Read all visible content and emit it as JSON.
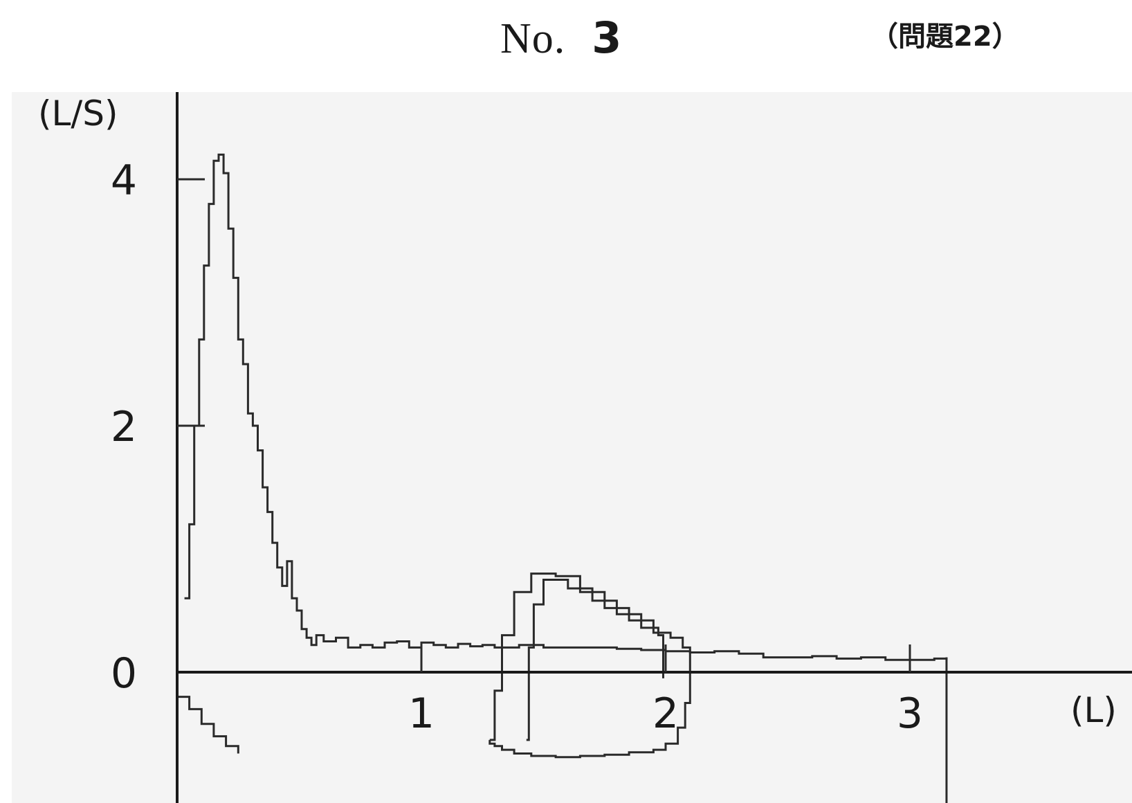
{
  "header": {
    "title": "No.",
    "number": "3",
    "reference": "（問題22）"
  },
  "chart_data": {
    "type": "line",
    "title": "",
    "xlabel": "(L)",
    "ylabel": "(L/S)",
    "xlim": [
      0,
      3.5
    ],
    "ylim": [
      -0.7,
      4.6
    ],
    "xticks": [
      "1",
      "2",
      "3"
    ],
    "yticks": [
      "4",
      "2",
      "0"
    ],
    "grid": false,
    "colors": {
      "curve": "#2a2a2a",
      "axis": "#1a1a1a",
      "background": "#f4f4f4"
    },
    "series": [
      {
        "values_x": [
          0.03,
          0.05,
          0.07,
          0.09,
          0.11,
          0.13,
          0.15,
          0.17,
          0.19,
          0.21,
          0.23,
          0.25,
          0.27,
          0.29,
          0.31,
          0.33,
          0.35,
          0.37,
          0.39,
          0.41,
          0.43,
          0.45,
          0.47,
          0.49,
          0.51,
          0.53,
          0.55,
          0.57,
          0.6,
          0.65,
          0.7,
          0.75,
          0.8,
          0.85,
          0.9,
          0.95,
          1.0,
          1.05,
          1.1,
          1.15,
          1.2,
          1.25,
          1.3,
          1.4,
          1.5,
          1.6,
          1.7,
          1.8,
          1.9,
          2.0,
          2.1,
          2.2,
          2.3,
          2.4,
          2.5,
          2.6,
          2.7,
          2.8,
          2.9,
          3.0,
          3.1,
          3.15
        ],
        "values_y": [
          0.6,
          1.2,
          2.0,
          2.7,
          3.3,
          3.8,
          4.15,
          4.2,
          4.05,
          3.6,
          3.2,
          2.7,
          2.5,
          2.1,
          2.0,
          1.8,
          1.5,
          1.3,
          1.05,
          0.85,
          0.7,
          0.9,
          0.6,
          0.5,
          0.35,
          0.28,
          0.22,
          0.3,
          0.25,
          0.28,
          0.2,
          0.22,
          0.2,
          0.24,
          0.25,
          0.2,
          0.24,
          0.22,
          0.2,
          0.23,
          0.21,
          0.22,
          0.2,
          0.22,
          0.2,
          0.2,
          0.2,
          0.19,
          0.18,
          0.17,
          0.16,
          0.17,
          0.15,
          0.12,
          0.12,
          0.13,
          0.11,
          0.12,
          0.1,
          0.1,
          0.11,
          0.12
        ]
      },
      {
        "values_x": [
          1.28,
          1.3,
          1.33,
          1.38,
          1.45,
          1.55,
          1.65,
          1.75,
          1.85,
          1.95,
          2.02,
          2.07,
          2.1,
          2.1,
          2.08,
          2.05,
          2.0,
          1.95,
          1.85,
          1.75,
          1.65,
          1.55,
          1.45,
          1.38,
          1.33,
          1.3,
          1.28
        ],
        "values_y": [
          -0.55,
          -0.15,
          0.3,
          0.65,
          0.8,
          0.78,
          0.65,
          0.52,
          0.42,
          0.32,
          0.28,
          0.2,
          0.05,
          -0.25,
          -0.45,
          -0.58,
          -0.63,
          -0.65,
          -0.67,
          -0.68,
          -0.69,
          -0.68,
          -0.66,
          -0.63,
          -0.6,
          -0.58,
          -0.55
        ]
      },
      {
        "values_x": [
          1.43,
          1.44,
          1.46,
          1.5,
          1.6,
          1.7,
          1.8,
          1.9,
          1.97,
          1.99,
          1.99
        ],
        "values_y": [
          -0.55,
          0.2,
          0.55,
          0.75,
          0.68,
          0.58,
          0.47,
          0.36,
          0.3,
          0.15,
          -0.05
        ]
      },
      {
        "values_x": [
          0.0,
          0.05,
          0.1,
          0.15,
          0.2,
          0.25
        ],
        "values_y": [
          -0.2,
          -0.3,
          -0.42,
          -0.52,
          -0.6,
          -0.66
        ]
      }
    ]
  }
}
